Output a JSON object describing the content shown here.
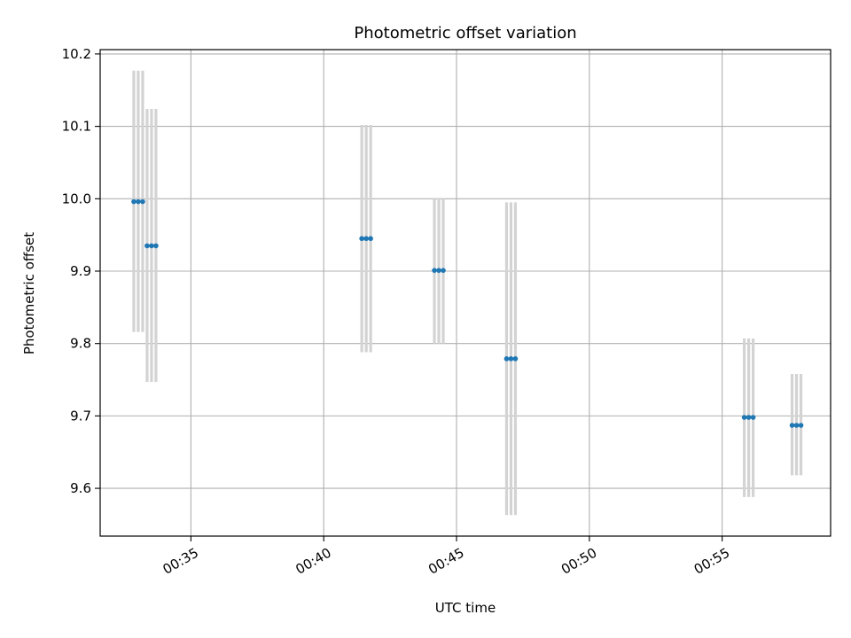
{
  "chart_data": {
    "type": "scatter",
    "title": "Photometric offset variation",
    "xlabel": "UTC time",
    "ylabel": "Photometric offset",
    "grid": true,
    "xlim": [
      "00:31:35",
      "00:59:05"
    ],
    "ylim": [
      9.534,
      10.206
    ],
    "x_ticks": [
      "00:35",
      "00:40",
      "00:45",
      "00:50",
      "00:55"
    ],
    "y_ticks": [
      9.6,
      9.7,
      9.8,
      9.9,
      10.0,
      10.1,
      10.2
    ],
    "colors": {
      "marker": "#1f77b4",
      "errorbar": "#d3d3d3",
      "grid": "#b0b0b0"
    },
    "groups": [
      {
        "times": [
          "00:32:51",
          "00:33:01",
          "00:33:11"
        ],
        "value": 9.996,
        "err_low": 9.816,
        "err_high": 10.177
      },
      {
        "times": [
          "00:33:21",
          "00:33:31",
          "00:33:41"
        ],
        "value": 9.935,
        "err_low": 9.747,
        "err_high": 10.124
      },
      {
        "times": [
          "00:41:26",
          "00:41:36",
          "00:41:46"
        ],
        "value": 9.945,
        "err_low": 9.788,
        "err_high": 10.102
      },
      {
        "times": [
          "00:44:10",
          "00:44:20",
          "00:44:30"
        ],
        "value": 9.901,
        "err_low": 9.8,
        "err_high": 10.0
      },
      {
        "times": [
          "00:46:53",
          "00:47:03",
          "00:47:13"
        ],
        "value": 9.779,
        "err_low": 9.563,
        "err_high": 9.995
      },
      {
        "times": [
          "00:55:50",
          "00:56:00",
          "00:56:10"
        ],
        "value": 9.698,
        "err_low": 9.588,
        "err_high": 9.807
      },
      {
        "times": [
          "00:57:38",
          "00:57:48",
          "00:57:58"
        ],
        "value": 9.687,
        "err_low": 9.618,
        "err_high": 9.758
      }
    ]
  }
}
